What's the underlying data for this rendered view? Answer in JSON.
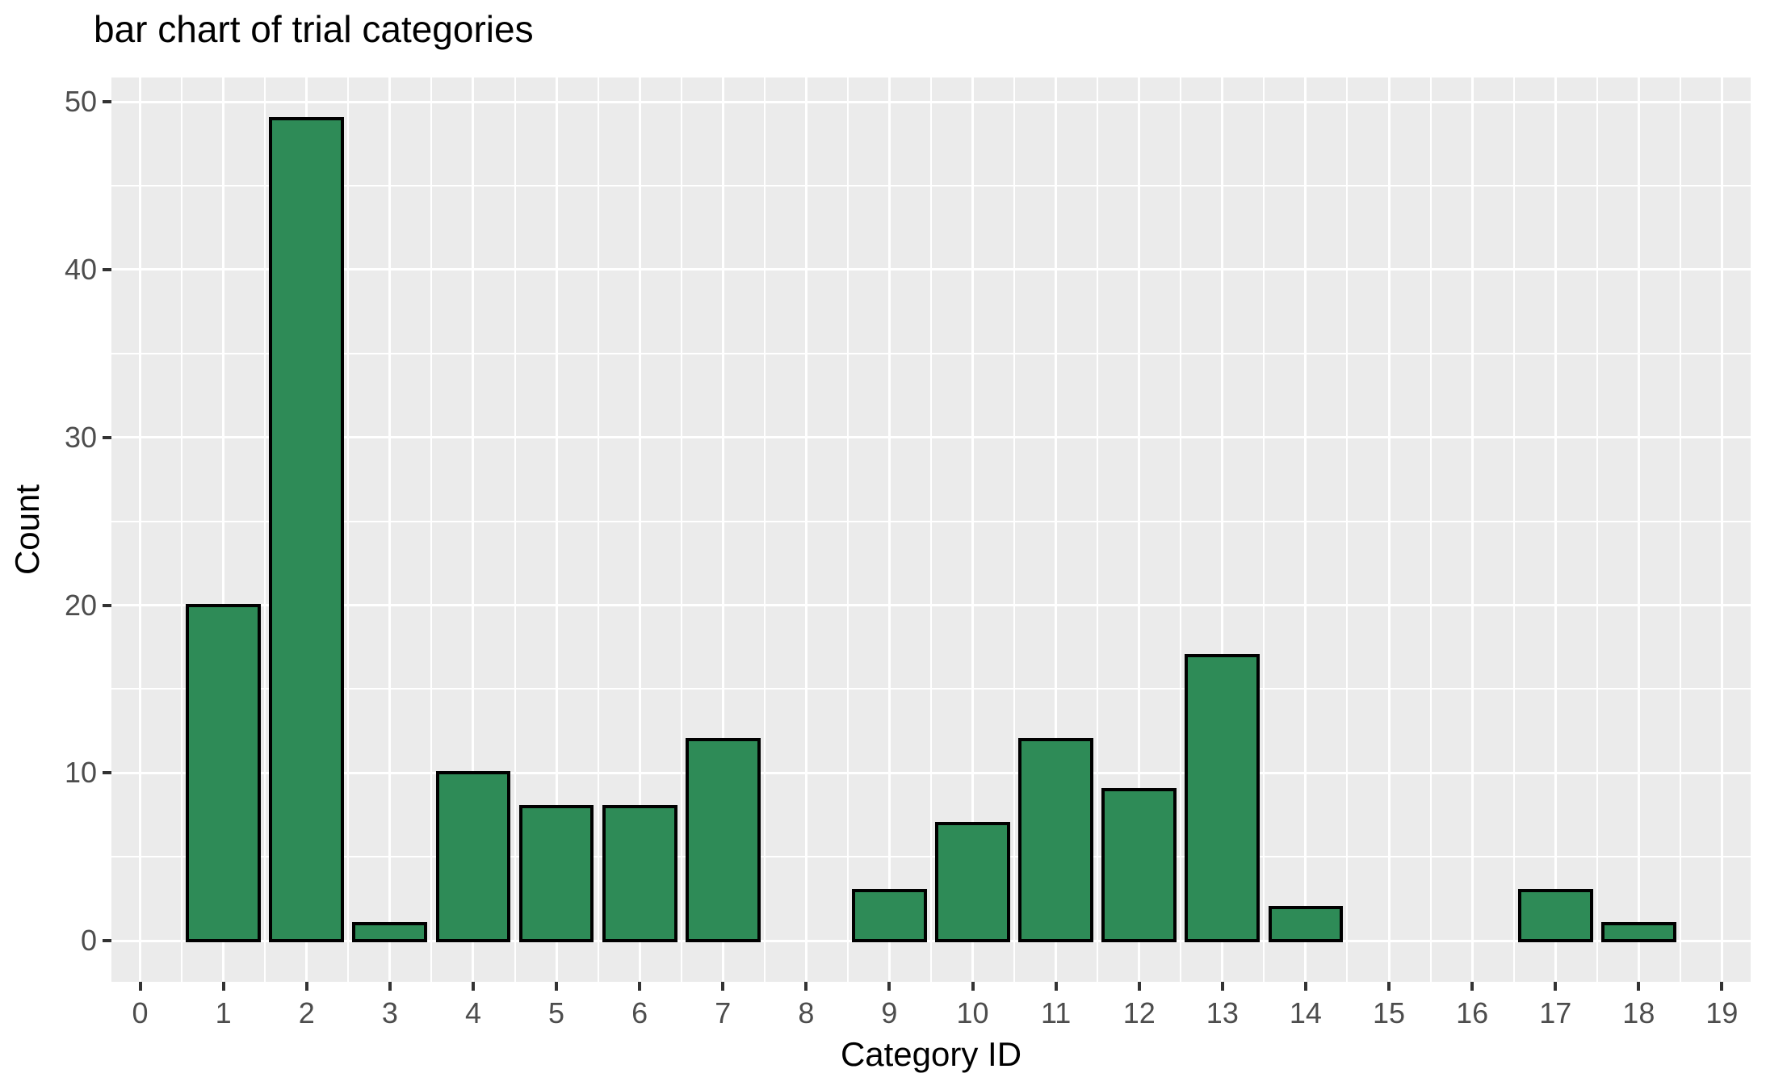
{
  "chart_data": {
    "type": "bar",
    "title": "bar chart of trial categories",
    "xlabel": "Category ID",
    "ylabel": "Count",
    "x": [
      1,
      2,
      3,
      4,
      5,
      6,
      7,
      8,
      9,
      10,
      11,
      12,
      13,
      14,
      15,
      16,
      17,
      18
    ],
    "values": [
      20,
      49,
      1,
      10,
      8,
      8,
      12,
      0,
      3,
      7,
      12,
      9,
      17,
      2,
      0,
      0,
      3,
      1
    ],
    "bar_width": 0.9,
    "x_ticks": [
      0,
      1,
      2,
      3,
      4,
      5,
      6,
      7,
      8,
      9,
      10,
      11,
      12,
      13,
      14,
      15,
      16,
      17,
      18,
      19
    ],
    "x_tick_labels": [
      "0",
      "1",
      "2",
      "3",
      "4",
      "5",
      "6",
      "7",
      "8",
      "9",
      "10",
      "11",
      "12",
      "13",
      "14",
      "15",
      "16",
      "17",
      "18",
      "19"
    ],
    "y_ticks": [
      0,
      10,
      20,
      30,
      40,
      50
    ],
    "y_tick_labels": [
      "0",
      "10",
      "20",
      "30",
      "40",
      "50"
    ],
    "x_range": [
      -0.345,
      19.345
    ],
    "y_range": [
      -2.45,
      51.45
    ],
    "grid": true,
    "minor_grid": true,
    "legend_position": "none",
    "colors": {
      "bar_fill": "#2E8B57",
      "bar_stroke": "#000000",
      "panel_background": "#EBEBEB",
      "gridline": "#FFFFFF",
      "tick_label": "#4D4D4D",
      "tick_mark": "#333333",
      "title_text": "#000000",
      "figure_background": "#FFFFFF"
    }
  }
}
